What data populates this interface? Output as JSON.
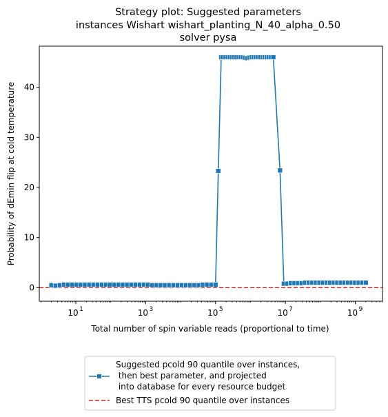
{
  "chart_data": {
    "type": "line",
    "title_lines": [
      "Strategy plot: Suggested parameters",
      "instances Wishart wishart_planting_N_40_alpha_0.50",
      "solver pysa"
    ],
    "xlabel": "Total number of spin variable reads (proportional to time)",
    "ylabel": "Probability of dEmin flip at cold temperature",
    "xscale": "log",
    "xlim": [
      0.9,
      6000000000
    ],
    "ylim": [
      -2.7,
      48.2
    ],
    "y_ticks": [
      0,
      10,
      20,
      30,
      40
    ],
    "x_ticks": [
      {
        "value": 10,
        "base": "10",
        "exp": "1"
      },
      {
        "value": 1000,
        "base": "10",
        "exp": "3"
      },
      {
        "value": 100000,
        "base": "10",
        "exp": "5"
      },
      {
        "value": 10000000,
        "base": "10",
        "exp": "7"
      },
      {
        "value": 1000000000,
        "base": "10",
        "exp": "9"
      }
    ],
    "grid": false,
    "legend_position": "below-center",
    "series": [
      {
        "name": "Suggested pcold 90 quantile over instances,\n then best parameter, and projected\n into database for every resource budget",
        "color": "#1f77b4",
        "marker": "square",
        "segments": [
          {
            "x_start": 2,
            "x_end": 100000,
            "count": 40,
            "values": [
              0.5,
              0.4,
              0.5,
              0.6,
              0.6,
              0.6,
              0.6,
              0.6,
              0.6,
              0.6,
              0.6,
              0.6,
              0.6,
              0.6,
              0.6,
              0.6,
              0.6,
              0.6,
              0.6,
              0.6,
              0.6,
              0.6,
              0.6,
              0.6,
              0.5,
              0.5,
              0.5,
              0.5,
              0.5,
              0.5,
              0.5,
              0.5,
              0.5,
              0.5,
              0.5,
              0.5,
              0.6,
              0.6,
              0.6,
              0.6
            ]
          },
          {
            "x_start": 120000,
            "x_end": 120000,
            "count": 1,
            "values": [
              23.3
            ]
          },
          {
            "x_start": 145000,
            "x_end": 4500000,
            "count": 25,
            "values": [
              46,
              46,
              46,
              46,
              46,
              46,
              46,
              46,
              46,
              46,
              46,
              45.9,
              45.8,
              45.9,
              46,
              46,
              46,
              46,
              46,
              46,
              46,
              46,
              46,
              46,
              46
            ]
          },
          {
            "x_start": 7000000,
            "x_end": 7000000,
            "count": 1,
            "values": [
              23.4
            ]
          },
          {
            "x_start": 9000000,
            "x_end": 2000000000,
            "count": 24,
            "values": [
              0.8,
              0.8,
              0.9,
              0.9,
              0.9,
              0.9,
              1.0,
              1.0,
              1.0,
              1.0,
              1.0,
              1.0,
              1.0,
              1.0,
              1.0,
              1.0,
              1.0,
              1.0,
              1.0,
              1.0,
              1.0,
              1.0,
              1.0,
              1.0
            ]
          }
        ]
      },
      {
        "name": "Best TTS pcold 90 quantile over instances",
        "color": "#d62728",
        "style": "dashed",
        "y_constant": 0
      }
    ]
  }
}
